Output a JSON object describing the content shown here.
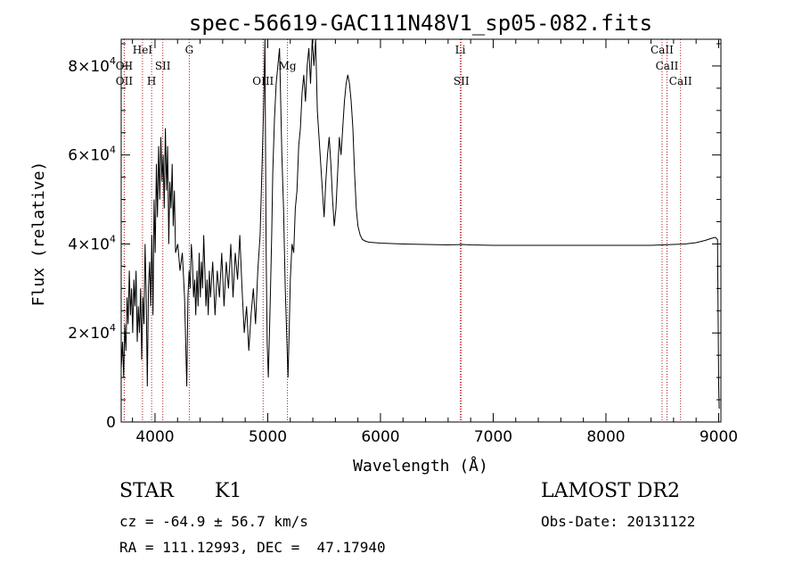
{
  "chart_data": {
    "type": "line",
    "title": "spec-56619-GAC111N48V1_sp05-082.fits",
    "xlabel": "Wavelength (Å)",
    "ylabel": "Flux (relative)",
    "xlim": [
      3700,
      9020
    ],
    "ylim": [
      0,
      86000
    ],
    "x_ticks": [
      {
        "value": 4000,
        "label": "4000"
      },
      {
        "value": 5000,
        "label": "5000"
      },
      {
        "value": 6000,
        "label": "6000"
      },
      {
        "value": 7000,
        "label": "7000"
      },
      {
        "value": 8000,
        "label": "8000"
      },
      {
        "value": 9000,
        "label": "9000"
      }
    ],
    "y_ticks": [
      {
        "value": 0,
        "mant": "0",
        "exp": ""
      },
      {
        "value": 20000,
        "mant": "2×10",
        "exp": "4"
      },
      {
        "value": 40000,
        "mant": "4×10",
        "exp": "4"
      },
      {
        "value": 60000,
        "mant": "6×10",
        "exp": "4"
      },
      {
        "value": 80000,
        "mant": "8×10",
        "exp": "4"
      }
    ],
    "series": [
      {
        "color": "#000000",
        "points": [
          [
            3700,
            12000
          ],
          [
            3712,
            18000
          ],
          [
            3722,
            10000
          ],
          [
            3732,
            22000
          ],
          [
            3742,
            16000
          ],
          [
            3752,
            28000
          ],
          [
            3762,
            22000
          ],
          [
            3772,
            34000
          ],
          [
            3782,
            24000
          ],
          [
            3792,
            30000
          ],
          [
            3802,
            20000
          ],
          [
            3812,
            32000
          ],
          [
            3822,
            26000
          ],
          [
            3832,
            34000
          ],
          [
            3842,
            18000
          ],
          [
            3852,
            26000
          ],
          [
            3862,
            20000
          ],
          [
            3872,
            30000
          ],
          [
            3882,
            14000
          ],
          [
            3892,
            28000
          ],
          [
            3902,
            22000
          ],
          [
            3912,
            40000
          ],
          [
            3922,
            28000
          ],
          [
            3932,
            8000
          ],
          [
            3942,
            30000
          ],
          [
            3952,
            36000
          ],
          [
            3962,
            26000
          ],
          [
            3972,
            42000
          ],
          [
            3982,
            24000
          ],
          [
            3992,
            50000
          ],
          [
            4002,
            38000
          ],
          [
            4012,
            58000
          ],
          [
            4022,
            46000
          ],
          [
            4032,
            62000
          ],
          [
            4042,
            50000
          ],
          [
            4052,
            64000
          ],
          [
            4062,
            54000
          ],
          [
            4072,
            60000
          ],
          [
            4082,
            48000
          ],
          [
            4092,
            66000
          ],
          [
            4102,
            52000
          ],
          [
            4112,
            62000
          ],
          [
            4122,
            40000
          ],
          [
            4132,
            54000
          ],
          [
            4142,
            48000
          ],
          [
            4152,
            58000
          ],
          [
            4162,
            44000
          ],
          [
            4172,
            52000
          ],
          [
            4182,
            38000
          ],
          [
            4202,
            40000
          ],
          [
            4222,
            34000
          ],
          [
            4242,
            38000
          ],
          [
            4262,
            28000
          ],
          [
            4282,
            8000
          ],
          [
            4292,
            28000
          ],
          [
            4302,
            34000
          ],
          [
            4312,
            30000
          ],
          [
            4322,
            40000
          ],
          [
            4332,
            36000
          ],
          [
            4342,
            28000
          ],
          [
            4352,
            32000
          ],
          [
            4362,
            24000
          ],
          [
            4372,
            34000
          ],
          [
            4382,
            26000
          ],
          [
            4392,
            38000
          ],
          [
            4402,
            28000
          ],
          [
            4412,
            36000
          ],
          [
            4422,
            30000
          ],
          [
            4432,
            42000
          ],
          [
            4442,
            34000
          ],
          [
            4452,
            26000
          ],
          [
            4462,
            32000
          ],
          [
            4472,
            24000
          ],
          [
            4482,
            34000
          ],
          [
            4492,
            28000
          ],
          [
            4512,
            36000
          ],
          [
            4532,
            24000
          ],
          [
            4552,
            34000
          ],
          [
            4572,
            28000
          ],
          [
            4592,
            38000
          ],
          [
            4612,
            26000
          ],
          [
            4632,
            36000
          ],
          [
            4652,
            30000
          ],
          [
            4672,
            40000
          ],
          [
            4692,
            28000
          ],
          [
            4712,
            38000
          ],
          [
            4732,
            32000
          ],
          [
            4752,
            42000
          ],
          [
            4772,
            30000
          ],
          [
            4792,
            20000
          ],
          [
            4812,
            26000
          ],
          [
            4832,
            16000
          ],
          [
            4852,
            24000
          ],
          [
            4872,
            30000
          ],
          [
            4892,
            22000
          ],
          [
            4912,
            34000
          ],
          [
            4932,
            42000
          ],
          [
            4952,
            60000
          ],
          [
            4965,
            72000
          ],
          [
            4975,
            86000
          ],
          [
            4985,
            40000
          ],
          [
            4995,
            18000
          ],
          [
            5005,
            10000
          ],
          [
            5015,
            20000
          ],
          [
            5025,
            30000
          ],
          [
            5035,
            42000
          ],
          [
            5045,
            56000
          ],
          [
            5060,
            68000
          ],
          [
            5075,
            76000
          ],
          [
            5090,
            80000
          ],
          [
            5105,
            84000
          ],
          [
            5115,
            72000
          ],
          [
            5125,
            60000
          ],
          [
            5140,
            48000
          ],
          [
            5155,
            30000
          ],
          [
            5170,
            18000
          ],
          [
            5180,
            10000
          ],
          [
            5190,
            20000
          ],
          [
            5200,
            32000
          ],
          [
            5215,
            40000
          ],
          [
            5230,
            38000
          ],
          [
            5245,
            48000
          ],
          [
            5260,
            52000
          ],
          [
            5275,
            62000
          ],
          [
            5290,
            66000
          ],
          [
            5305,
            74000
          ],
          [
            5320,
            78000
          ],
          [
            5335,
            72000
          ],
          [
            5350,
            80000
          ],
          [
            5365,
            84000
          ],
          [
            5380,
            76000
          ],
          [
            5395,
            86000
          ],
          [
            5410,
            80000
          ],
          [
            5425,
            86000
          ],
          [
            5440,
            70000
          ],
          [
            5455,
            64000
          ],
          [
            5470,
            58000
          ],
          [
            5485,
            52000
          ],
          [
            5500,
            46000
          ],
          [
            5515,
            54000
          ],
          [
            5530,
            60000
          ],
          [
            5545,
            64000
          ],
          [
            5560,
            58000
          ],
          [
            5575,
            50000
          ],
          [
            5590,
            44000
          ],
          [
            5605,
            48000
          ],
          [
            5620,
            56000
          ],
          [
            5635,
            64000
          ],
          [
            5650,
            60000
          ],
          [
            5665,
            66000
          ],
          [
            5680,
            72000
          ],
          [
            5695,
            76000
          ],
          [
            5710,
            78000
          ],
          [
            5725,
            76000
          ],
          [
            5740,
            72000
          ],
          [
            5755,
            66000
          ],
          [
            5770,
            56000
          ],
          [
            5785,
            48000
          ],
          [
            5800,
            44000
          ],
          [
            5820,
            42000
          ],
          [
            5840,
            41000
          ],
          [
            5870,
            40600
          ],
          [
            5900,
            40400
          ],
          [
            6000,
            40200
          ],
          [
            6200,
            40000
          ],
          [
            6400,
            39900
          ],
          [
            6600,
            39800
          ],
          [
            6720,
            39900
          ],
          [
            6800,
            39800
          ],
          [
            7000,
            39700
          ],
          [
            7200,
            39700
          ],
          [
            7400,
            39700
          ],
          [
            7600,
            39700
          ],
          [
            7800,
            39700
          ],
          [
            8000,
            39700
          ],
          [
            8200,
            39700
          ],
          [
            8400,
            39700
          ],
          [
            8500,
            39800
          ],
          [
            8600,
            39900
          ],
          [
            8700,
            40000
          ],
          [
            8800,
            40300
          ],
          [
            8880,
            40800
          ],
          [
            8940,
            41300
          ],
          [
            8970,
            41500
          ],
          [
            8990,
            41000
          ],
          [
            9000,
            8000
          ],
          [
            9005,
            3000
          ]
        ]
      }
    ],
    "emission_lines": [
      {
        "x": 3727,
        "label": "OII",
        "row": 2,
        "color": "#b31a1a"
      },
      {
        "x": 3727,
        "label": "OII",
        "row": 1,
        "color": "#b31a1a"
      },
      {
        "x": 3889,
        "label": "HeI",
        "row": 0,
        "color": "#b31a1a"
      },
      {
        "x": 3970,
        "label": "H",
        "row": 2,
        "color": "#b31a1a"
      },
      {
        "x": 4069,
        "label": "SII",
        "row": 1,
        "color": "#b31a1a"
      },
      {
        "x": 4304,
        "label": "G",
        "row": 0,
        "color": "#b31a1a"
      },
      {
        "x": 4959,
        "label": "OIII",
        "row": 2,
        "color": "#b31a1a"
      },
      {
        "x": 5175,
        "label": "Mg",
        "row": 1,
        "color": "#b31a1a"
      },
      {
        "x": 6708,
        "label": "Li",
        "row": 0,
        "color": "#b31a1a"
      },
      {
        "x": 6718,
        "label": "SII",
        "row": 2,
        "color": "#b31a1a"
      },
      {
        "x": 8498,
        "label": "CaII",
        "row": 0,
        "color": "#b31a1a"
      },
      {
        "x": 8542,
        "label": "CaII",
        "row": 1,
        "color": "#b31a1a"
      },
      {
        "x": 8662,
        "label": "CaII",
        "row": 2,
        "color": "#b31a1a"
      }
    ],
    "grid": false,
    "legend": "none"
  },
  "info": {
    "class": "STAR",
    "subclass": "K1",
    "cz": "cz = -64.9 ± 56.7 km/s",
    "radec": "RA = 111.12993, DEC =  47.17940",
    "survey": "LAMOST DR2",
    "obs_date": "Obs-Date: 20131122"
  }
}
